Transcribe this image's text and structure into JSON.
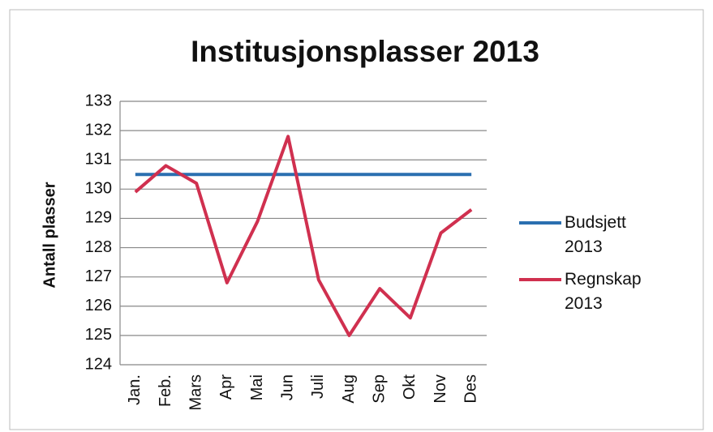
{
  "chart_data": {
    "type": "line",
    "title": "Institusjonsplasser 2013",
    "y_label": "Antall plasser",
    "categories": [
      "Jan.",
      "Feb.",
      "Mars",
      "Apr",
      "Mai",
      "Jun",
      "Juli",
      "Aug",
      "Sep",
      "Okt",
      "Nov",
      "Des"
    ],
    "series": [
      {
        "name": "Budsjett 2013",
        "color": "#2a6fb0",
        "values": [
          130.5,
          130.5,
          130.5,
          130.5,
          130.5,
          130.5,
          130.5,
          130.5,
          130.5,
          130.5,
          130.5,
          130.5
        ]
      },
      {
        "name": "Regnskap 2013",
        "color": "#d0304f",
        "values": [
          129.9,
          130.8,
          130.2,
          126.8,
          128.9,
          131.8,
          126.9,
          125.0,
          126.6,
          125.6,
          128.5,
          129.3
        ]
      }
    ],
    "ylim": [
      124,
      133
    ],
    "yticks": [
      124,
      125,
      126,
      127,
      128,
      129,
      130,
      131,
      132,
      133
    ],
    "grid": true,
    "legend": "right"
  }
}
